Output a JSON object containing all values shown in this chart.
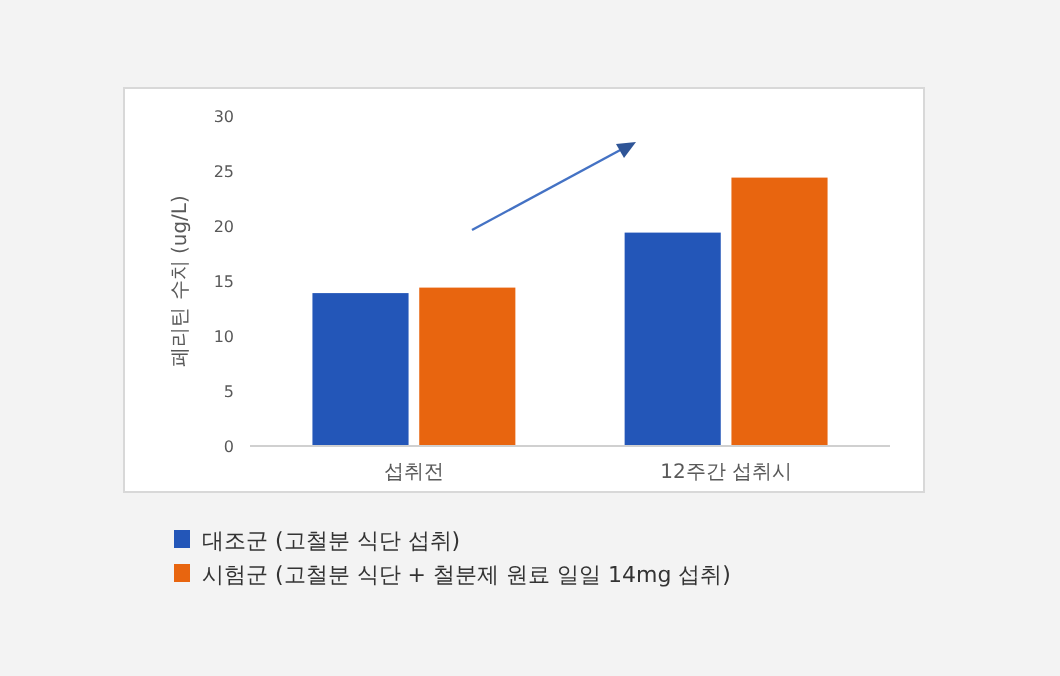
{
  "chart_data": {
    "type": "bar",
    "ylabel": "페리틴 수치 (ug/L)",
    "categories": [
      "섭취전",
      "12주간 섭취시"
    ],
    "series": [
      {
        "name": "대조군 (고철분 식단 섭취)",
        "color": "#2356b8",
        "values": [
          13.9,
          19.4
        ]
      },
      {
        "name": "시험군 (고철분 식단 + 철분제 원료 일일 14mg 섭취)",
        "color": "#e8650f",
        "values": [
          14.4,
          24.4
        ]
      }
    ],
    "ylim": [
      0,
      30
    ],
    "yticks": [
      0,
      5,
      10,
      15,
      20,
      25,
      30
    ],
    "grid": false,
    "legend": "bottom"
  }
}
